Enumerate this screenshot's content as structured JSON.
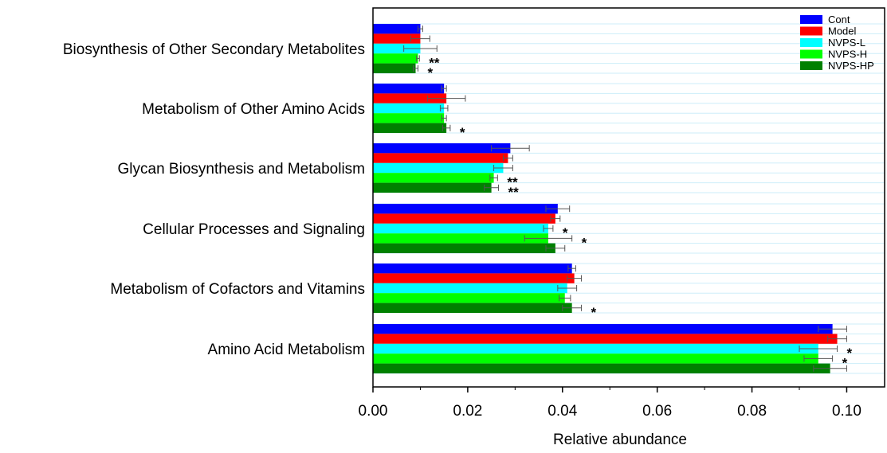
{
  "chart_data": {
    "type": "bar",
    "orientation": "horizontal",
    "xlabel": "Relative abundance",
    "xlim": [
      0,
      0.108
    ],
    "xticks": [
      "0.00",
      "0.02",
      "0.04",
      "0.06",
      "0.08",
      "0.10"
    ],
    "categories": [
      "Biosynthesis of Other Secondary Metabolites",
      "Metabolism of Other Amino Acids",
      "Glycan Biosynthesis and Metabolism",
      "Cellular Processes and Signaling",
      "Metabolism of Cofactors and Vitamins",
      "Amino Acid Metabolism"
    ],
    "series": [
      {
        "name": "Cont",
        "color": "#0000ff",
        "values": [
          0.01,
          0.015,
          0.029,
          0.039,
          0.042,
          0.097
        ],
        "errors": [
          0.0005,
          0.0005,
          0.004,
          0.0025,
          0.0008,
          0.003
        ]
      },
      {
        "name": "Model",
        "color": "#ff0000",
        "values": [
          0.01,
          0.0155,
          0.0285,
          0.0385,
          0.0425,
          0.098
        ],
        "errors": [
          0.002,
          0.004,
          0.001,
          0.001,
          0.0015,
          0.002
        ]
      },
      {
        "name": "NVPS-L",
        "color": "#00ffff",
        "values": [
          0.01,
          0.015,
          0.0275,
          0.037,
          0.041,
          0.094
        ],
        "errors": [
          0.0035,
          0.0008,
          0.002,
          0.001,
          0.002,
          0.004
        ]
      },
      {
        "name": "NVPS-H",
        "color": "#00ff00",
        "values": [
          0.0095,
          0.015,
          0.0255,
          0.037,
          0.0405,
          0.094
        ],
        "errors": [
          0.0003,
          0.0005,
          0.0008,
          0.005,
          0.0012,
          0.003
        ]
      },
      {
        "name": "NVPS-HP",
        "color": "#008000",
        "values": [
          0.009,
          0.0155,
          0.025,
          0.0385,
          0.042,
          0.0965
        ],
        "errors": [
          0.0005,
          0.0008,
          0.0015,
          0.002,
          0.002,
          0.0035
        ]
      }
    ],
    "annotations": [
      {
        "category": 0,
        "series": 3,
        "text": "**"
      },
      {
        "category": 0,
        "series": 4,
        "text": "*"
      },
      {
        "category": 1,
        "series": 4,
        "text": "*"
      },
      {
        "category": 2,
        "series": 3,
        "text": "**"
      },
      {
        "category": 2,
        "series": 4,
        "text": "**"
      },
      {
        "category": 3,
        "series": 2,
        "text": "*"
      },
      {
        "category": 3,
        "series": 3,
        "text": "*"
      },
      {
        "category": 4,
        "series": 4,
        "text": "*"
      },
      {
        "category": 5,
        "series": 2,
        "text": "*"
      },
      {
        "category": 5,
        "series": 3,
        "text": "*"
      }
    ],
    "legend": "top-right",
    "grid": false
  }
}
